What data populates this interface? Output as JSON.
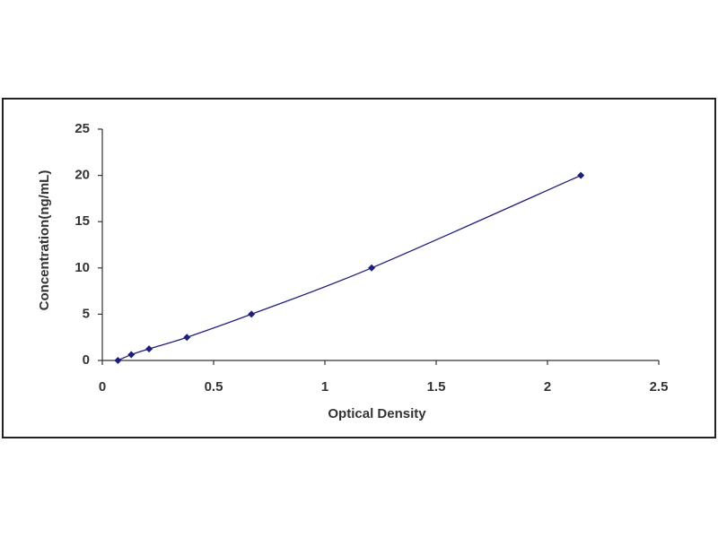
{
  "chart_data": {
    "type": "line",
    "x_label": "Optical Density",
    "y_label": "Concentration(ng/mL)",
    "x": [
      0.07,
      0.13,
      0.21,
      0.38,
      0.67,
      1.21,
      2.15
    ],
    "series": [
      {
        "color": "#1f1f7a",
        "values": [
          0,
          0.625,
          1.25,
          2.5,
          5,
          10,
          20
        ]
      }
    ],
    "xlim": [
      0,
      2.5
    ],
    "xticks": [
      0,
      0.5,
      1,
      1.5,
      2,
      2.5
    ],
    "ylim": [
      0,
      25
    ],
    "yticks": [
      0,
      5,
      10,
      15,
      20,
      25
    ],
    "grid": false
  }
}
